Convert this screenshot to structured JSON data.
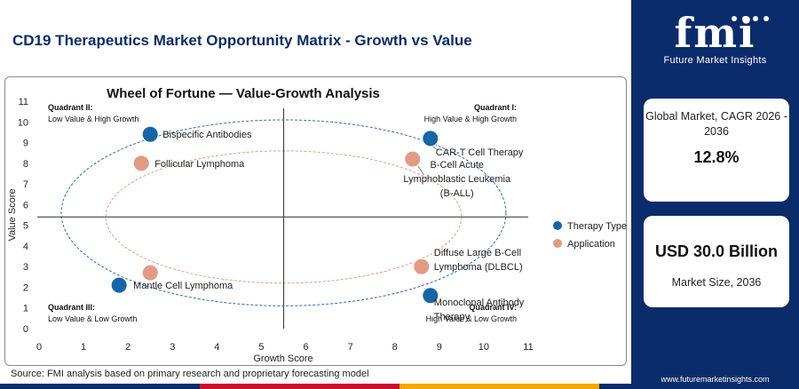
{
  "header": {
    "title": "CD19 Therapeutics Market Opportunity Matrix - Growth vs Value"
  },
  "chart_data": {
    "type": "scatter",
    "title": "Wheel of Fortune — Value-Growth Analysis",
    "xlabel": "Growth Score",
    "ylabel": "Value Score",
    "xlim": [
      0,
      11
    ],
    "ylim": [
      0,
      11
    ],
    "xticks": [
      0,
      1,
      2,
      3,
      4,
      5,
      6,
      7,
      8,
      9,
      10,
      11
    ],
    "yticks": [
      0,
      1,
      2,
      3,
      4,
      5,
      6,
      7,
      8,
      9,
      10,
      11
    ],
    "dividers": {
      "x": 5.5,
      "y": 5.4
    },
    "quadrants": [
      {
        "name": "Quadrant II:",
        "desc": "Low Value & High Growth",
        "pos": "top-left"
      },
      {
        "name": "Quadrant I:",
        "desc": "High Value & High Growth",
        "pos": "top-right"
      },
      {
        "name": "Quadrant III:",
        "desc": "Low Value & Low Growth",
        "pos": "bottom-left"
      },
      {
        "name": "Quadrant IV:",
        "desc": "High Value & Low Growth",
        "pos": "bottom-right"
      }
    ],
    "series": [
      {
        "name": "Therapy Type",
        "color": "#1565a8",
        "points": [
          {
            "x": 2.5,
            "y": 9.4,
            "label": "Bispecific Antibodies"
          },
          {
            "x": 8.8,
            "y": 9.2,
            "label": "CAR-T Cell Therapy"
          },
          {
            "x": 1.8,
            "y": 2.1,
            "label": "Mantle Cell Lymphoma"
          },
          {
            "x": 8.8,
            "y": 1.6,
            "label": "Monoclonal Antibody Therapy"
          }
        ]
      },
      {
        "name": "Application",
        "color": "#e39a85",
        "points": [
          {
            "x": 2.3,
            "y": 8.0,
            "label": "Follicular Lymphoma"
          },
          {
            "x": 8.4,
            "y": 8.2,
            "label": "B-Cell Acute Lymphoblastic Leukemia (B-ALL)"
          },
          {
            "x": 2.5,
            "y": 2.7,
            "label": ""
          },
          {
            "x": 8.6,
            "y": 3.0,
            "label": "Diffuse Large B-Cell Lymphoma (DLBCL)"
          }
        ]
      }
    ],
    "legend": "right"
  },
  "sidebar": {
    "logo": "fmi",
    "logo_sub": "Future Market Insights",
    "cagr_label": "Global Market, CAGR 2026 - 2036",
    "cagr_value": "12.8%",
    "size_value": "USD 30.0 Billion",
    "size_label": "Market Size, 2036",
    "url": "www.futuremarketinsights.com"
  },
  "source": "Source: FMI analysis based on primary research and proprietary forecasting model",
  "colors": {
    "navy": "#0b2c6b",
    "bar": [
      "#0b2c6b",
      "#c8102e",
      "#f2a900",
      "#0b2c6b"
    ]
  }
}
